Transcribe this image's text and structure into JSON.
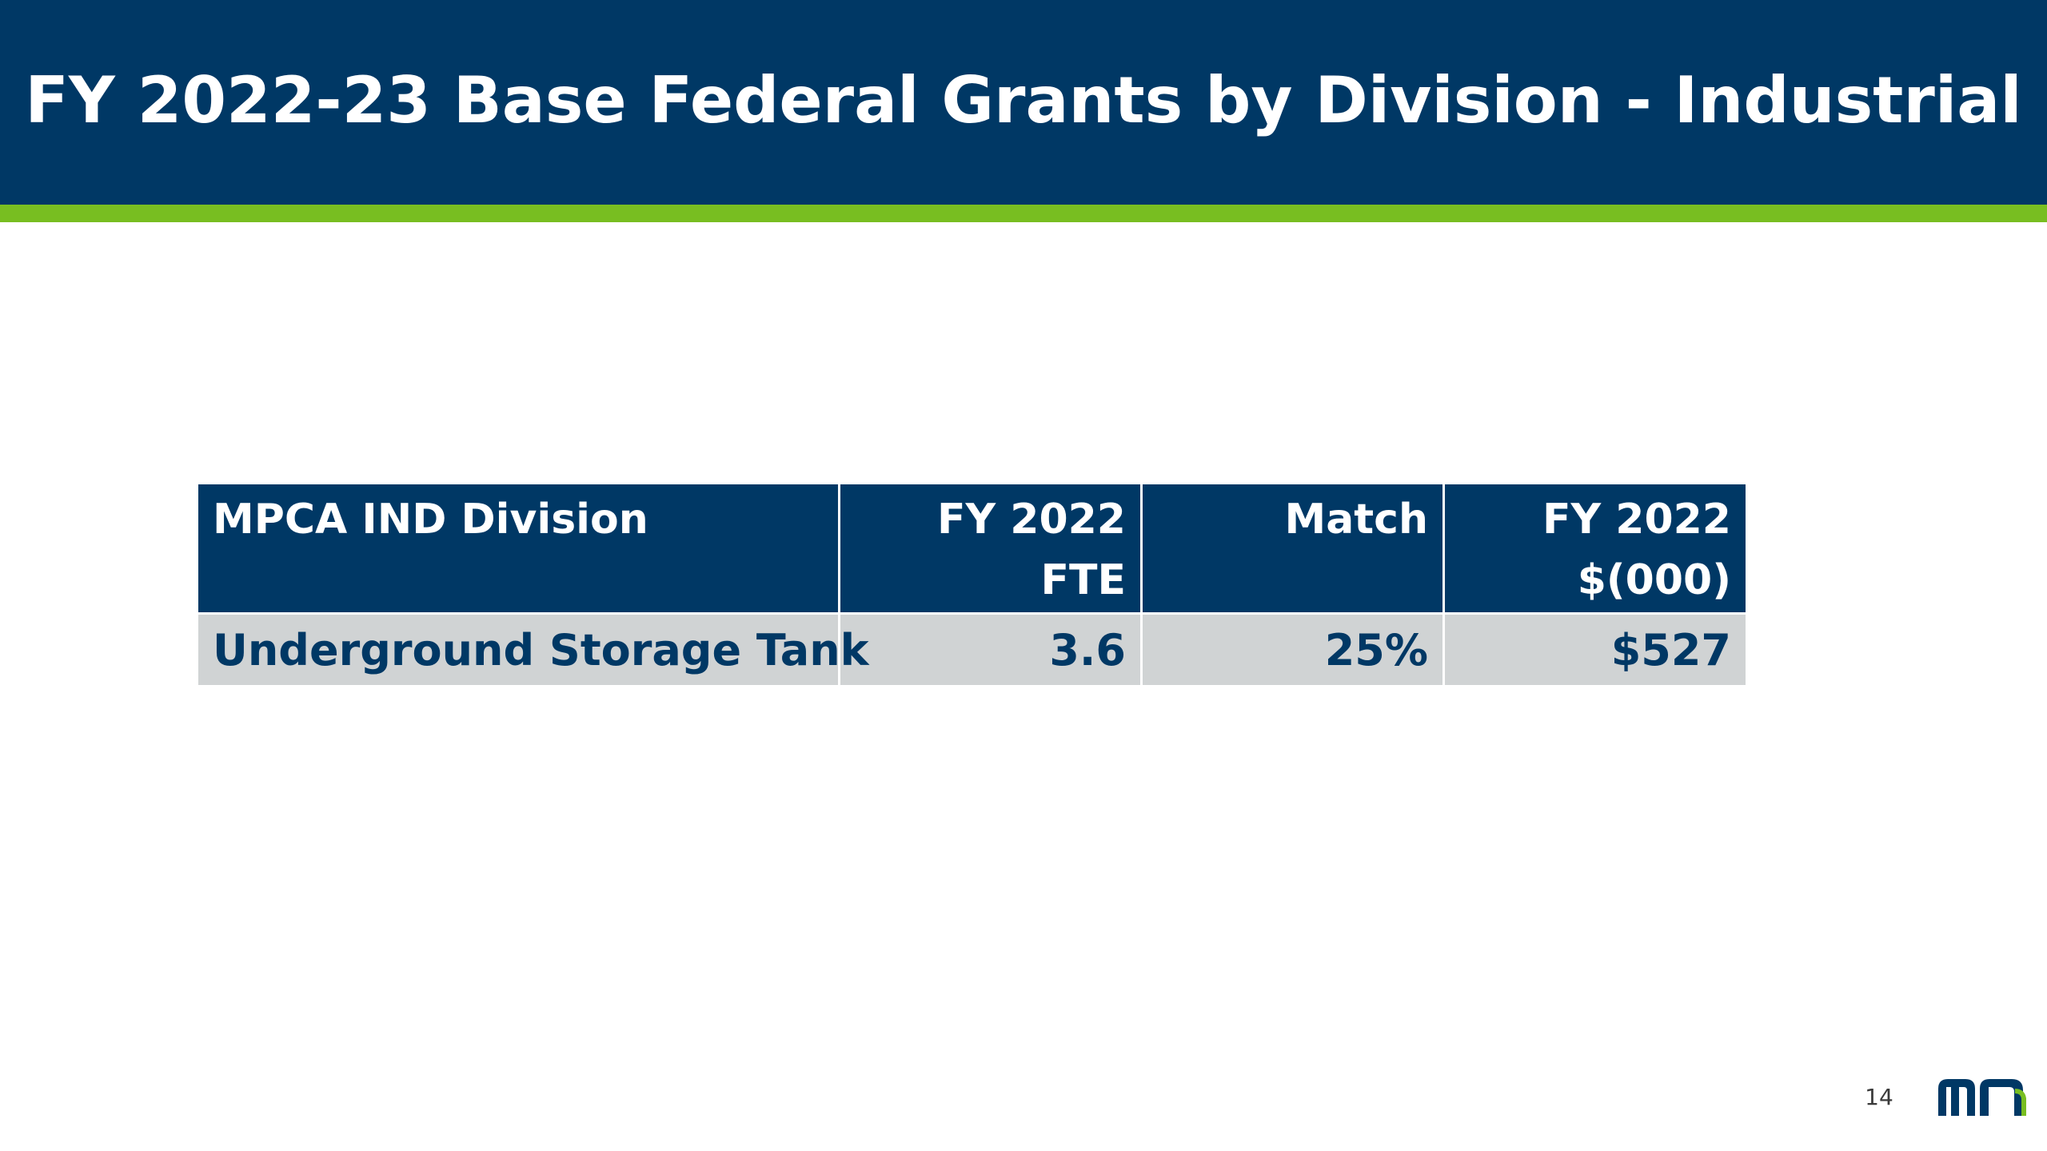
{
  "slide": {
    "title": "FY 2022-23 Base Federal Grants by Division - Industrial",
    "page_number": "14"
  },
  "table": {
    "headers": [
      "MPCA IND Division",
      "FY 2022 FTE",
      "Match",
      "FY 2022 $(000)"
    ],
    "rows": [
      [
        "Underground Storage Tank",
        "3.6",
        "25%",
        "$527"
      ]
    ]
  },
  "colors": {
    "header_bg": "#003865",
    "accent": "#78be21",
    "row_bg": "#d0d3d4",
    "row_text": "#003865"
  },
  "logo": {
    "icon": "mn-state-logo",
    "letters": "mn"
  }
}
